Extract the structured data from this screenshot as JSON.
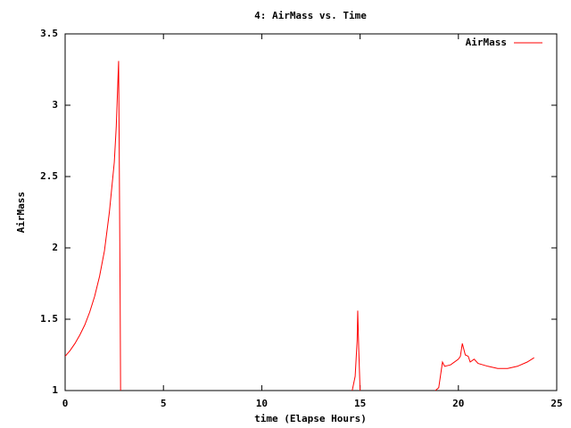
{
  "chart_data": {
    "type": "line",
    "title": "4: AirMass vs. Time",
    "xlabel": "time (Elapse Hours)",
    "ylabel": "AirMass",
    "xlim": [
      0,
      25
    ],
    "xticks": [
      0,
      5,
      10,
      15,
      20,
      25
    ],
    "ylim": [
      1,
      3.5
    ],
    "yticks": [
      1,
      1.5,
      2,
      2.5,
      3,
      3.5
    ],
    "grid": false,
    "legend": "top-right",
    "x": [
      0,
      0.25,
      0.5,
      0.75,
      1,
      1.25,
      1.5,
      1.75,
      2,
      2.25,
      2.5,
      2.6,
      2.72,
      2.75,
      2.8,
      2.82,
      8,
      14.6,
      14.75,
      14.85,
      14.88,
      14.93,
      15.0,
      17,
      18.83,
      19.0,
      19.19,
      19.3,
      19.6,
      20.0,
      20.1,
      20.2,
      20.35,
      20.5,
      20.6,
      20.8,
      21.0,
      21.5,
      22.0,
      22.5,
      23.0,
      23.5,
      23.85
    ],
    "series": [
      {
        "name": "AirMass",
        "color": "#ff0000",
        "values": [
          1.24,
          1.28,
          1.33,
          1.39,
          1.46,
          1.55,
          1.66,
          1.8,
          1.98,
          2.25,
          2.6,
          2.85,
          3.31,
          2.7,
          1.6,
          1.0,
          null,
          1.0,
          1.1,
          1.35,
          1.56,
          1.3,
          1.0,
          null,
          1.0,
          1.02,
          1.2,
          1.17,
          1.18,
          1.22,
          1.24,
          1.33,
          1.25,
          1.24,
          1.2,
          1.22,
          1.19,
          1.17,
          1.155,
          1.155,
          1.17,
          1.2,
          1.23
        ]
      }
    ]
  }
}
